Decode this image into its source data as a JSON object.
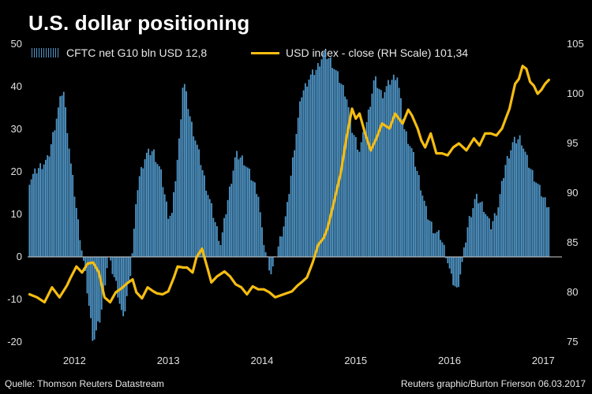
{
  "title": "U.S. dollar positioning",
  "legend": {
    "bars_label": "CFTC net G10 bln USD 12,8",
    "line_label": "USD index - close (RH Scale) 101,34"
  },
  "footer": {
    "source": "Quelle: Thomson Reuters Datastream",
    "credit": "Reuters graphic/Burton Frierson 06.03.2017"
  },
  "colors": {
    "bars": "#4f96c8",
    "line": "#f5bd11",
    "background": "#000000"
  },
  "chart_data": {
    "type": "bar",
    "x_tick_labels": [
      "2012",
      "2013",
      "2014",
      "2015",
      "2016",
      "2017"
    ],
    "x_ticks": [
      2012.0,
      2013.0,
      2014.0,
      2015.0,
      2016.0,
      2017.0
    ],
    "xlim": [
      2011.5,
      2017.2
    ],
    "left_axis": {
      "ticks": [
        50,
        40,
        30,
        20,
        10,
        0,
        -10,
        -20
      ],
      "ylim": [
        -20,
        50
      ]
    },
    "right_axis": {
      "ticks": [
        105,
        100,
        95,
        90,
        85,
        80,
        75
      ],
      "ylim": [
        75,
        105
      ]
    },
    "grid": false,
    "legend_position": "top",
    "series": [
      {
        "name": "CFTC net G10 bln USD 12,8",
        "type": "bar",
        "axis": "left",
        "points": [
          [
            2011.52,
            18
          ],
          [
            2011.62,
            21
          ],
          [
            2011.72,
            23
          ],
          [
            2011.8,
            32
          ],
          [
            2011.88,
            40
          ],
          [
            2011.96,
            22
          ],
          [
            2012.04,
            8
          ],
          [
            2012.12,
            -5
          ],
          [
            2012.2,
            -20
          ],
          [
            2012.28,
            -14
          ],
          [
            2012.36,
            0
          ],
          [
            2012.44,
            -6
          ],
          [
            2012.52,
            -15
          ],
          [
            2012.6,
            -3
          ],
          [
            2012.68,
            18
          ],
          [
            2012.76,
            24
          ],
          [
            2012.84,
            25
          ],
          [
            2012.92,
            20
          ],
          [
            2013.0,
            10
          ],
          [
            2013.04,
            10
          ],
          [
            2013.12,
            28
          ],
          [
            2013.16,
            42
          ],
          [
            2013.24,
            32
          ],
          [
            2013.32,
            25
          ],
          [
            2013.4,
            17
          ],
          [
            2013.48,
            10
          ],
          [
            2013.56,
            3
          ],
          [
            2013.64,
            14
          ],
          [
            2013.72,
            24
          ],
          [
            2013.8,
            23
          ],
          [
            2013.88,
            19
          ],
          [
            2013.96,
            15
          ],
          [
            2014.0,
            6
          ],
          [
            2014.04,
            1
          ],
          [
            2014.1,
            -4
          ],
          [
            2014.18,
            3
          ],
          [
            2014.26,
            10
          ],
          [
            2014.34,
            25
          ],
          [
            2014.42,
            38
          ],
          [
            2014.5,
            42
          ],
          [
            2014.58,
            44
          ],
          [
            2014.66,
            48
          ],
          [
            2014.74,
            46
          ],
          [
            2014.82,
            42
          ],
          [
            2014.9,
            38
          ],
          [
            2014.96,
            30
          ],
          [
            2015.04,
            25
          ],
          [
            2015.12,
            32
          ],
          [
            2015.2,
            42
          ],
          [
            2015.28,
            38
          ],
          [
            2015.36,
            41
          ],
          [
            2015.44,
            43
          ],
          [
            2015.52,
            30
          ],
          [
            2015.6,
            25
          ],
          [
            2015.68,
            18
          ],
          [
            2015.76,
            10
          ],
          [
            2015.84,
            6
          ],
          [
            2015.9,
            5
          ],
          [
            2015.96,
            1
          ],
          [
            2016.02,
            -5
          ],
          [
            2016.08,
            -8
          ],
          [
            2016.14,
            -1
          ],
          [
            2016.2,
            8
          ],
          [
            2016.28,
            14
          ],
          [
            2016.36,
            12
          ],
          [
            2016.44,
            7
          ],
          [
            2016.52,
            12
          ],
          [
            2016.6,
            22
          ],
          [
            2016.68,
            27
          ],
          [
            2016.76,
            28
          ],
          [
            2016.84,
            22
          ],
          [
            2016.92,
            18
          ],
          [
            2017.0,
            14
          ],
          [
            2017.06,
            12
          ]
        ]
      },
      {
        "name": "USD index - close (RH Scale) 101,34",
        "type": "line",
        "axis": "right",
        "points": [
          [
            2011.52,
            79.8
          ],
          [
            2011.6,
            79.5
          ],
          [
            2011.68,
            79.0
          ],
          [
            2011.76,
            80.5
          ],
          [
            2011.84,
            79.5
          ],
          [
            2011.92,
            80.7
          ],
          [
            2011.96,
            81.5
          ],
          [
            2012.02,
            82.6
          ],
          [
            2012.08,
            82.0
          ],
          [
            2012.14,
            82.9
          ],
          [
            2012.2,
            83.0
          ],
          [
            2012.26,
            82.0
          ],
          [
            2012.32,
            79.5
          ],
          [
            2012.38,
            79.0
          ],
          [
            2012.44,
            80.0
          ],
          [
            2012.5,
            80.4
          ],
          [
            2012.56,
            80.9
          ],
          [
            2012.62,
            81.3
          ],
          [
            2012.66,
            80.0
          ],
          [
            2012.72,
            79.4
          ],
          [
            2012.78,
            80.5
          ],
          [
            2012.84,
            80.1
          ],
          [
            2012.88,
            79.9
          ],
          [
            2012.94,
            79.8
          ],
          [
            2013.0,
            80.1
          ],
          [
            2013.06,
            81.5
          ],
          [
            2013.1,
            82.6
          ],
          [
            2013.16,
            82.5
          ],
          [
            2013.2,
            82.5
          ],
          [
            2013.26,
            82.0
          ],
          [
            2013.3,
            83.5
          ],
          [
            2013.36,
            84.4
          ],
          [
            2013.42,
            82.4
          ],
          [
            2013.46,
            81.0
          ],
          [
            2013.52,
            81.6
          ],
          [
            2013.6,
            82.1
          ],
          [
            2013.66,
            81.6
          ],
          [
            2013.72,
            80.8
          ],
          [
            2013.78,
            80.5
          ],
          [
            2013.84,
            79.8
          ],
          [
            2013.9,
            80.6
          ],
          [
            2013.96,
            80.3
          ],
          [
            2014.02,
            80.3
          ],
          [
            2014.08,
            80.0
          ],
          [
            2014.14,
            79.5
          ],
          [
            2014.2,
            79.7
          ],
          [
            2014.26,
            79.9
          ],
          [
            2014.32,
            80.1
          ],
          [
            2014.38,
            80.7
          ],
          [
            2014.42,
            81.0
          ],
          [
            2014.48,
            81.5
          ],
          [
            2014.54,
            83.0
          ],
          [
            2014.6,
            84.8
          ],
          [
            2014.66,
            85.5
          ],
          [
            2014.7,
            86.5
          ],
          [
            2014.76,
            88.8
          ],
          [
            2014.84,
            92.0
          ],
          [
            2014.9,
            95.5
          ],
          [
            2014.96,
            98.5
          ],
          [
            2015.0,
            97.5
          ],
          [
            2015.04,
            98.0
          ],
          [
            2015.1,
            96.0
          ],
          [
            2015.16,
            94.3
          ],
          [
            2015.22,
            95.5
          ],
          [
            2015.28,
            97.0
          ],
          [
            2015.36,
            96.5
          ],
          [
            2015.42,
            98.0
          ],
          [
            2015.5,
            97.0
          ],
          [
            2015.56,
            98.4
          ],
          [
            2015.6,
            97.8
          ],
          [
            2015.66,
            96.5
          ],
          [
            2015.7,
            95.3
          ],
          [
            2015.74,
            94.6
          ],
          [
            2015.8,
            96.0
          ],
          [
            2015.86,
            94.0
          ],
          [
            2015.92,
            94.0
          ],
          [
            2015.98,
            93.8
          ],
          [
            2016.04,
            94.6
          ],
          [
            2016.1,
            95.0
          ],
          [
            2016.18,
            94.3
          ],
          [
            2016.26,
            95.5
          ],
          [
            2016.32,
            94.8
          ],
          [
            2016.38,
            96.0
          ],
          [
            2016.44,
            96.0
          ],
          [
            2016.5,
            95.8
          ],
          [
            2016.56,
            96.5
          ],
          [
            2016.6,
            97.5
          ],
          [
            2016.64,
            98.5
          ],
          [
            2016.7,
            101.0
          ],
          [
            2016.74,
            101.5
          ],
          [
            2016.78,
            102.8
          ],
          [
            2016.82,
            102.5
          ],
          [
            2016.86,
            101.2
          ],
          [
            2016.9,
            100.8
          ],
          [
            2016.94,
            100.0
          ],
          [
            2016.98,
            100.4
          ],
          [
            2017.02,
            101.0
          ],
          [
            2017.06,
            101.4
          ]
        ]
      }
    ]
  }
}
